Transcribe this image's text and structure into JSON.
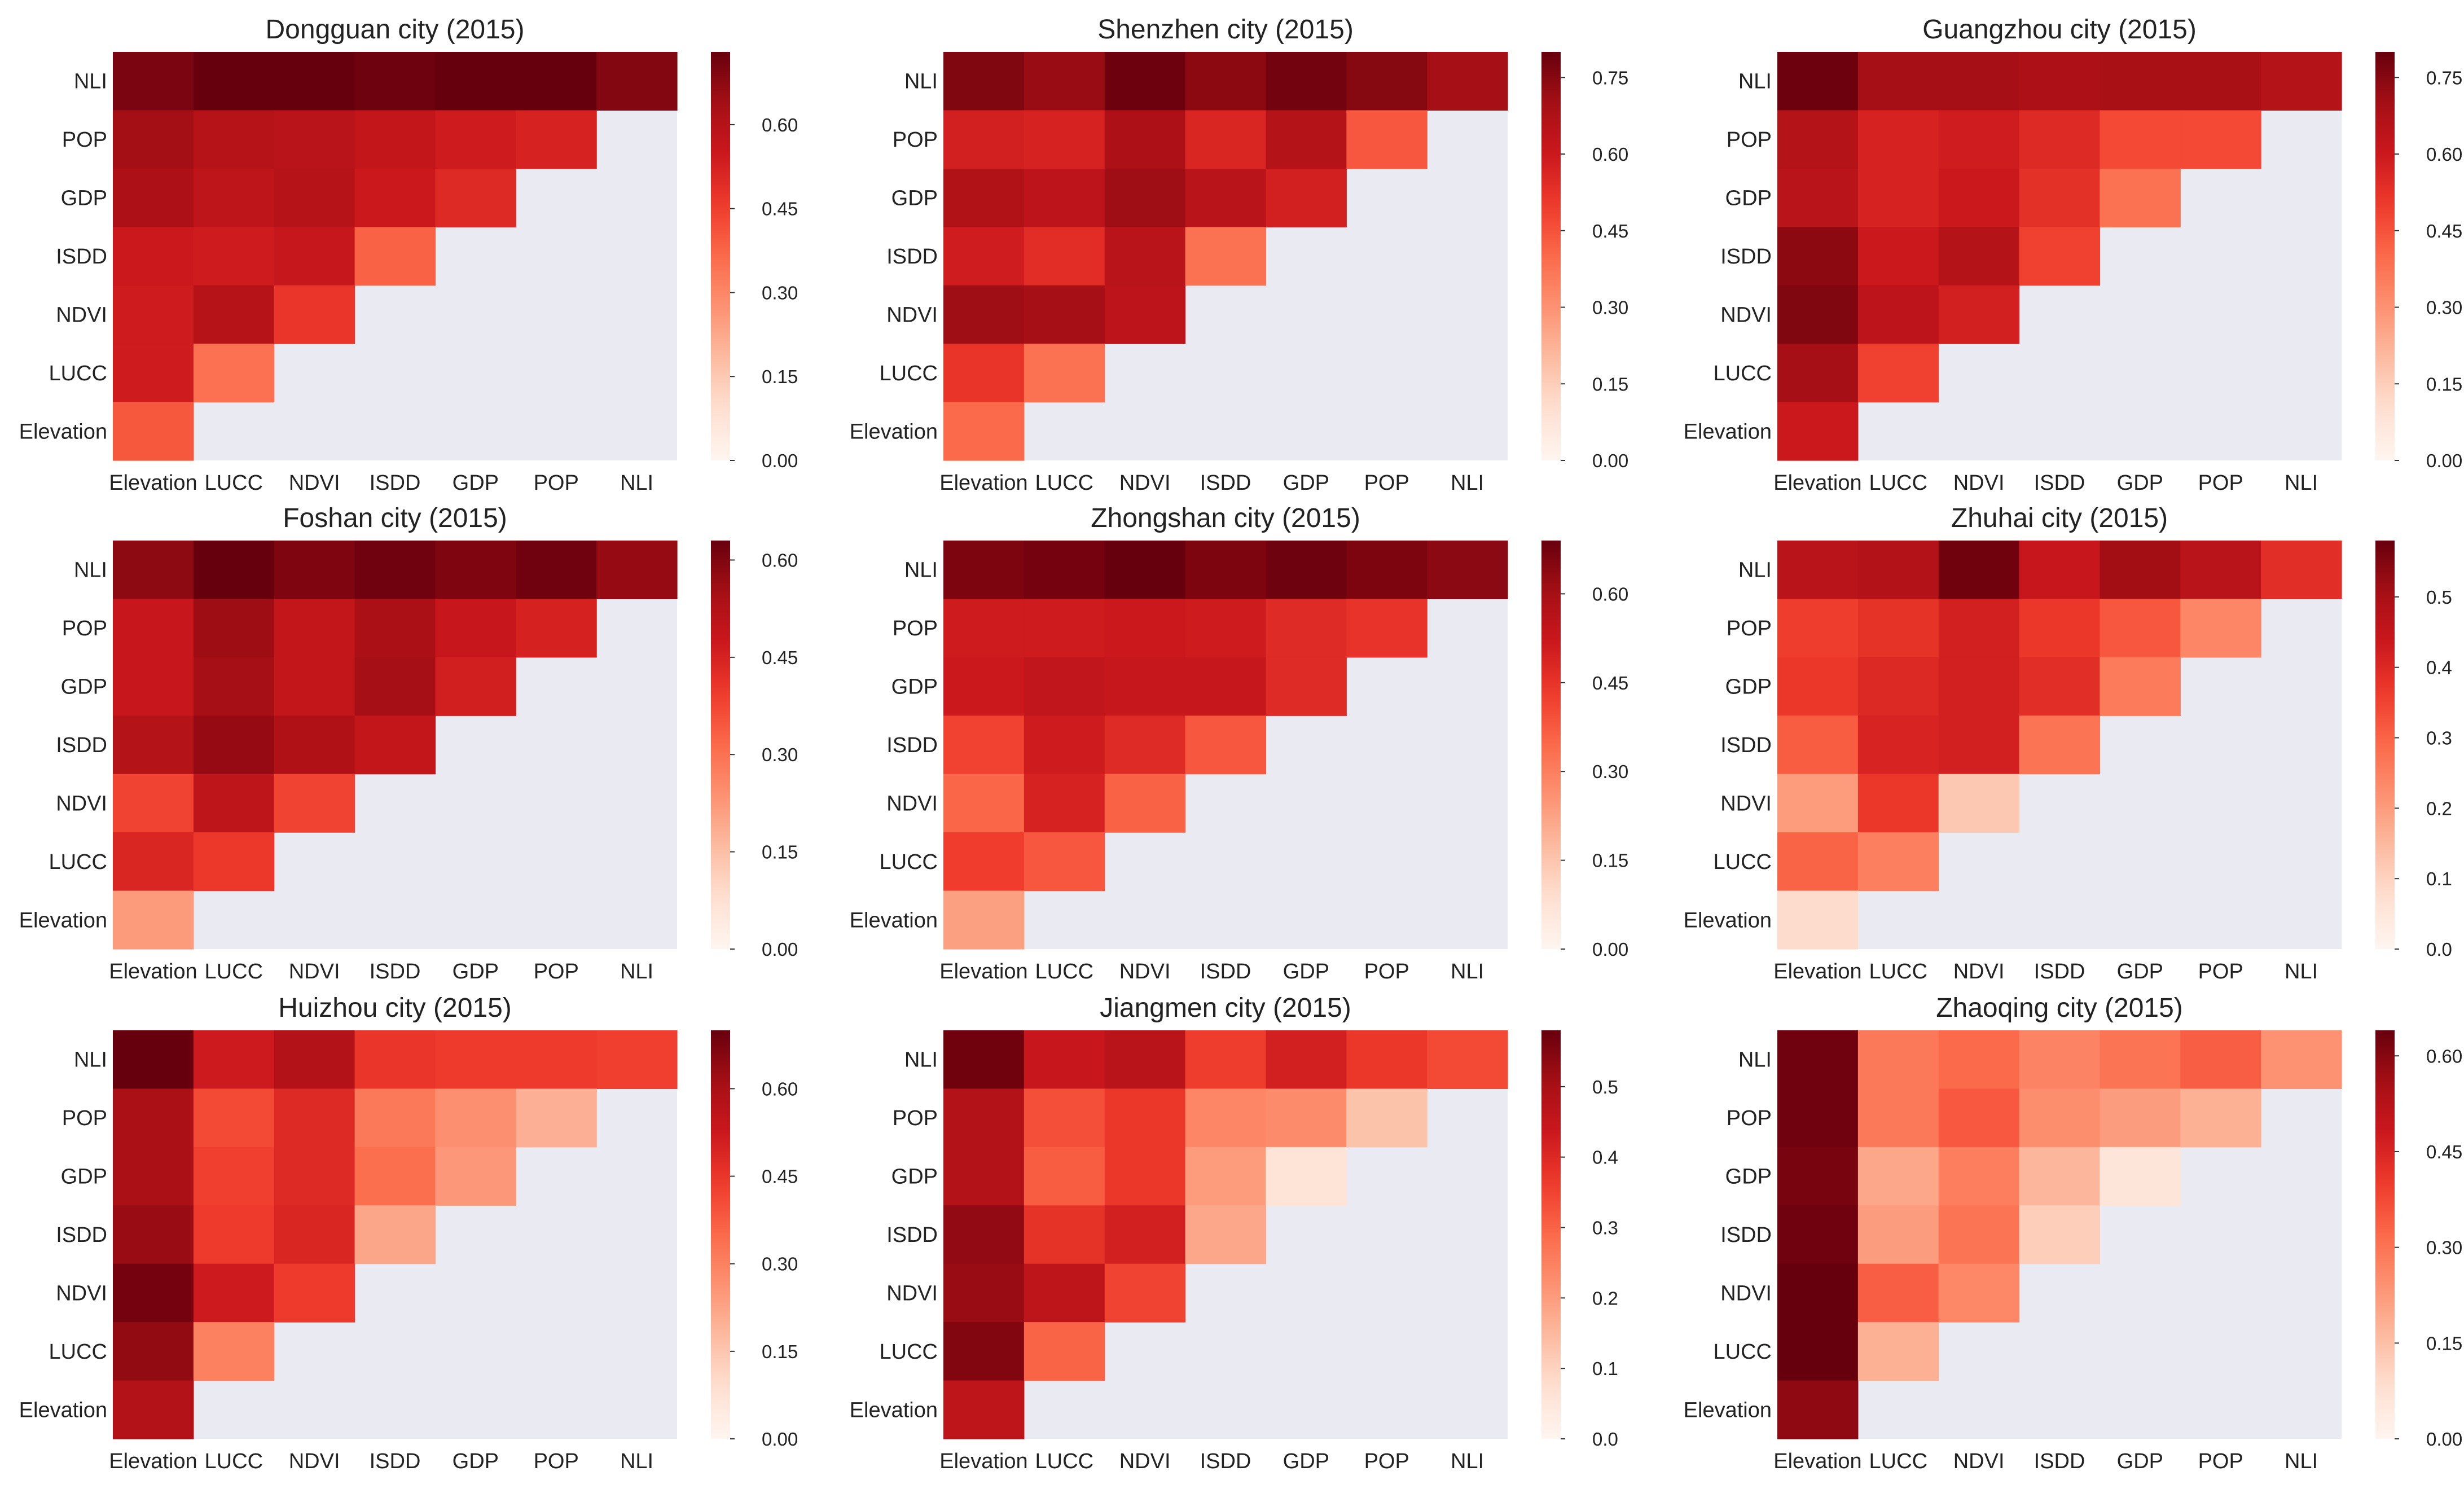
{
  "figure": {
    "background": "#ffffff",
    "mask_color": "#eaeaf2",
    "colormap": "Reds"
  },
  "chart_data": [
    {
      "type": "heatmap",
      "title": "Dongguan city (2015)",
      "rows": [
        "NLI",
        "POP",
        "GDP",
        "ISDD",
        "NDVI",
        "LUCC",
        "Elevation"
      ],
      "columns": [
        "Elevation",
        "LUCC",
        "NDVI",
        "ISDD",
        "GDP",
        "POP",
        "NLI"
      ],
      "values": [
        [
          0.7,
          0.74,
          0.73,
          0.72,
          0.74,
          0.73,
          0.69
        ],
        [
          0.64,
          0.6,
          0.59,
          0.57,
          0.54,
          0.52,
          null
        ],
        [
          0.62,
          0.58,
          0.6,
          0.55,
          0.5,
          null,
          null
        ],
        [
          0.55,
          0.54,
          0.56,
          0.38,
          null,
          null,
          null
        ],
        [
          0.54,
          0.6,
          0.47,
          null,
          null,
          null,
          null
        ],
        [
          0.54,
          0.35,
          null,
          null,
          null,
          null,
          null
        ],
        [
          0.4,
          null,
          null,
          null,
          null,
          null,
          null
        ]
      ],
      "colorbar": {
        "vmin": 0.0,
        "vmax": 0.73,
        "ticks": [
          "0.00",
          "0.15",
          "0.30",
          "0.45",
          "0.60"
        ]
      }
    },
    {
      "type": "heatmap",
      "title": "Shenzhen city (2015)",
      "rows": [
        "NLI",
        "POP",
        "GDP",
        "ISDD",
        "NDVI",
        "LUCC",
        "Elevation"
      ],
      "columns": [
        "Elevation",
        "LUCC",
        "NDVI",
        "ISDD",
        "GDP",
        "POP",
        "NLI"
      ],
      "values": [
        [
          0.76,
          0.72,
          0.79,
          0.74,
          0.78,
          0.75,
          0.7
        ],
        [
          0.58,
          0.57,
          0.68,
          0.56,
          0.66,
          0.44,
          null
        ],
        [
          0.67,
          0.64,
          0.71,
          0.65,
          0.58,
          null,
          null
        ],
        [
          0.59,
          0.54,
          0.65,
          0.38,
          null,
          null,
          null
        ],
        [
          0.71,
          0.7,
          0.64,
          null,
          null,
          null,
          null
        ],
        [
          0.52,
          0.38,
          null,
          null,
          null,
          null,
          null
        ],
        [
          0.4,
          null,
          null,
          null,
          null,
          null,
          null
        ]
      ],
      "colorbar": {
        "vmin": 0.0,
        "vmax": 0.8,
        "ticks": [
          "0.00",
          "0.15",
          "0.30",
          "0.45",
          "0.60",
          "0.75"
        ]
      }
    },
    {
      "type": "heatmap",
      "title": "Guangzhou city (2015)",
      "rows": [
        "NLI",
        "POP",
        "GDP",
        "ISDD",
        "NDVI",
        "LUCC",
        "Elevation"
      ],
      "columns": [
        "Elevation",
        "LUCC",
        "NDVI",
        "ISDD",
        "GDP",
        "POP",
        "NLI"
      ],
      "values": [
        [
          0.79,
          0.7,
          0.7,
          0.68,
          0.69,
          0.69,
          0.66
        ],
        [
          0.66,
          0.57,
          0.59,
          0.55,
          0.47,
          0.47,
          null
        ],
        [
          0.65,
          0.57,
          0.6,
          0.53,
          0.38,
          null,
          null
        ],
        [
          0.74,
          0.6,
          0.66,
          0.49,
          null,
          null,
          null
        ],
        [
          0.76,
          0.64,
          0.58,
          null,
          null,
          null,
          null
        ],
        [
          0.7,
          0.49,
          null,
          null,
          null,
          null,
          null
        ],
        [
          0.6,
          null,
          null,
          null,
          null,
          null,
          null
        ]
      ],
      "colorbar": {
        "vmin": 0.0,
        "vmax": 0.8,
        "ticks": [
          "0.00",
          "0.15",
          "0.30",
          "0.45",
          "0.60",
          "0.75"
        ]
      }
    },
    {
      "type": "heatmap",
      "title": "Foshan city (2015)",
      "rows": [
        "NLI",
        "POP",
        "GDP",
        "ISDD",
        "NDVI",
        "LUCC",
        "Elevation"
      ],
      "columns": [
        "Elevation",
        "LUCC",
        "NDVI",
        "ISDD",
        "GDP",
        "POP",
        "NLI"
      ],
      "values": [
        [
          0.58,
          0.65,
          0.6,
          0.62,
          0.6,
          0.62,
          0.57
        ],
        [
          0.48,
          0.56,
          0.49,
          0.54,
          0.48,
          0.45,
          null
        ],
        [
          0.48,
          0.55,
          0.49,
          0.55,
          0.46,
          null,
          null
        ],
        [
          0.52,
          0.57,
          0.53,
          0.49,
          null,
          null,
          null
        ],
        [
          0.38,
          0.5,
          0.38,
          null,
          null,
          null,
          null
        ],
        [
          0.44,
          0.4,
          null,
          null,
          null,
          null,
          null
        ],
        [
          0.22,
          null,
          null,
          null,
          null,
          null,
          null
        ]
      ],
      "colorbar": {
        "vmin": 0.0,
        "vmax": 0.63,
        "ticks": [
          "0.00",
          "0.15",
          "0.30",
          "0.45",
          "0.60"
        ]
      }
    },
    {
      "type": "heatmap",
      "title": "Zhongshan city (2015)",
      "rows": [
        "NLI",
        "POP",
        "GDP",
        "ISDD",
        "NDVI",
        "LUCC",
        "Elevation"
      ],
      "columns": [
        "Elevation",
        "LUCC",
        "NDVI",
        "ISDD",
        "GDP",
        "POP",
        "NLI"
      ],
      "values": [
        [
          0.66,
          0.67,
          0.69,
          0.66,
          0.68,
          0.66,
          0.64
        ],
        [
          0.51,
          0.51,
          0.52,
          0.51,
          0.47,
          0.45,
          null
        ],
        [
          0.52,
          0.54,
          0.53,
          0.53,
          0.47,
          null,
          null
        ],
        [
          0.42,
          0.51,
          0.47,
          0.38,
          null,
          null,
          null
        ],
        [
          0.35,
          0.49,
          0.36,
          null,
          null,
          null,
          null
        ],
        [
          0.43,
          0.38,
          null,
          null,
          null,
          null,
          null
        ],
        [
          0.23,
          null,
          null,
          null,
          null,
          null,
          null
        ]
      ],
      "colorbar": {
        "vmin": 0.0,
        "vmax": 0.69,
        "ticks": [
          "0.00",
          "0.15",
          "0.30",
          "0.45",
          "0.60"
        ]
      }
    },
    {
      "type": "heatmap",
      "title": "Zhuhai city (2015)",
      "rows": [
        "NLI",
        "POP",
        "GDP",
        "ISDD",
        "NDVI",
        "LUCC",
        "Elevation"
      ],
      "columns": [
        "Elevation",
        "LUCC",
        "NDVI",
        "ISDD",
        "GDP",
        "POP",
        "NLI"
      ],
      "values": [
        [
          0.47,
          0.48,
          0.57,
          0.44,
          0.51,
          0.47,
          0.39
        ],
        [
          0.36,
          0.38,
          0.42,
          0.37,
          0.32,
          0.24,
          null
        ],
        [
          0.37,
          0.4,
          0.42,
          0.39,
          0.26,
          null,
          null
        ],
        [
          0.31,
          0.41,
          0.42,
          0.27,
          null,
          null,
          null
        ],
        [
          0.2,
          0.37,
          0.12,
          null,
          null,
          null,
          null
        ],
        [
          0.3,
          0.25,
          null,
          null,
          null,
          null,
          null
        ],
        [
          0.08,
          null,
          null,
          null,
          null,
          null,
          null
        ]
      ],
      "colorbar": {
        "vmin": 0.0,
        "vmax": 0.58,
        "ticks": [
          "0.0",
          "0.1",
          "0.2",
          "0.3",
          "0.4",
          "0.5"
        ]
      }
    },
    {
      "type": "heatmap",
      "title": "Huizhou city (2015)",
      "rows": [
        "NLI",
        "POP",
        "GDP",
        "ISDD",
        "NDVI",
        "LUCC",
        "Elevation"
      ],
      "columns": [
        "Elevation",
        "LUCC",
        "NDVI",
        "ISDD",
        "GDP",
        "POP",
        "NLI"
      ],
      "values": [
        [
          0.7,
          0.52,
          0.58,
          0.45,
          0.44,
          0.44,
          0.43
        ],
        [
          0.6,
          0.41,
          0.48,
          0.32,
          0.27,
          0.2,
          null
        ],
        [
          0.6,
          0.43,
          0.48,
          0.34,
          0.25,
          null,
          null
        ],
        [
          0.63,
          0.44,
          0.49,
          0.22,
          null,
          null,
          null
        ],
        [
          0.68,
          0.52,
          0.44,
          null,
          null,
          null,
          null
        ],
        [
          0.64,
          0.3,
          null,
          null,
          null,
          null,
          null
        ],
        [
          0.58,
          null,
          null,
          null,
          null,
          null,
          null
        ]
      ],
      "colorbar": {
        "vmin": 0.0,
        "vmax": 0.7,
        "ticks": [
          "0.00",
          "0.15",
          "0.30",
          "0.45",
          "0.60"
        ]
      }
    },
    {
      "type": "heatmap",
      "title": "Jiangmen city (2015)",
      "rows": [
        "NLI",
        "POP",
        "GDP",
        "ISDD",
        "NDVI",
        "LUCC",
        "Elevation"
      ],
      "columns": [
        "Elevation",
        "LUCC",
        "NDVI",
        "ISDD",
        "GDP",
        "POP",
        "NLI"
      ],
      "values": [
        [
          0.57,
          0.44,
          0.47,
          0.36,
          0.42,
          0.37,
          0.34
        ],
        [
          0.48,
          0.33,
          0.37,
          0.24,
          0.23,
          0.13,
          null
        ],
        [
          0.48,
          0.31,
          0.37,
          0.2,
          0.06,
          null,
          null
        ],
        [
          0.53,
          0.38,
          0.42,
          0.18,
          null,
          null,
          null
        ],
        [
          0.52,
          0.46,
          0.35,
          null,
          null,
          null,
          null
        ],
        [
          0.55,
          0.3,
          null,
          null,
          null,
          null,
          null
        ],
        [
          0.46,
          null,
          null,
          null,
          null,
          null,
          null
        ]
      ],
      "colorbar": {
        "vmin": 0.0,
        "vmax": 0.58,
        "ticks": [
          "0.0",
          "0.1",
          "0.2",
          "0.3",
          "0.4",
          "0.5"
        ]
      }
    },
    {
      "type": "heatmap",
      "title": "Zhaoqing city (2015)",
      "rows": [
        "NLI",
        "POP",
        "GDP",
        "ISDD",
        "NDVI",
        "LUCC",
        "Elevation"
      ],
      "columns": [
        "Elevation",
        "LUCC",
        "NDVI",
        "ISDD",
        "GDP",
        "POP",
        "NLI"
      ],
      "values": [
        [
          0.63,
          0.29,
          0.32,
          0.27,
          0.3,
          0.34,
          0.24
        ],
        [
          0.63,
          0.29,
          0.35,
          0.25,
          0.22,
          0.18,
          null
        ],
        [
          0.62,
          0.2,
          0.28,
          0.17,
          0.06,
          null,
          null
        ],
        [
          0.63,
          0.22,
          0.3,
          0.12,
          null,
          null,
          null
        ],
        [
          0.64,
          0.34,
          0.26,
          null,
          null,
          null,
          null
        ],
        [
          0.64,
          0.18,
          null,
          null,
          null,
          null,
          null
        ],
        [
          0.59,
          null,
          null,
          null,
          null,
          null,
          null
        ]
      ],
      "colorbar": {
        "vmin": 0.0,
        "vmax": 0.64,
        "ticks": [
          "0.00",
          "0.15",
          "0.30",
          "0.45",
          "0.60"
        ]
      }
    }
  ]
}
